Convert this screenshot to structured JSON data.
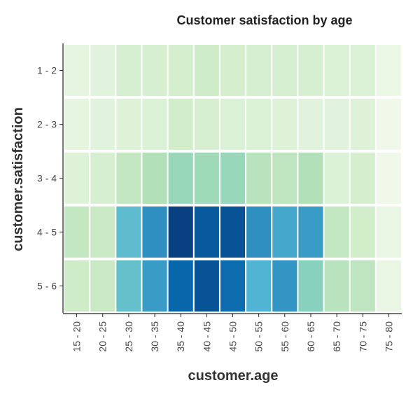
{
  "chart_data": {
    "type": "heatmap",
    "title": "Customer satisfaction by age",
    "xlabel": "customer.age",
    "ylabel": "customer.satisfaction",
    "x_categories": [
      "15 - 20",
      "20 - 25",
      "25 - 30",
      "30 - 35",
      "35 - 40",
      "40 - 45",
      "45 - 50",
      "50 - 55",
      "55 - 60",
      "60 - 65",
      "65 - 70",
      "70 - 75",
      "75 - 80"
    ],
    "y_categories": [
      "1 - 2",
      "2 - 3",
      "3 - 4",
      "4 - 5",
      "5 - 6"
    ],
    "values": [
      [
        0.1,
        0.12,
        0.18,
        0.18,
        0.2,
        0.24,
        0.2,
        0.18,
        0.18,
        0.18,
        0.16,
        0.16,
        0.06
      ],
      [
        0.1,
        0.12,
        0.14,
        0.16,
        0.22,
        0.18,
        0.16,
        0.16,
        0.14,
        0.12,
        0.12,
        0.14,
        0.04
      ],
      [
        0.14,
        0.18,
        0.28,
        0.34,
        0.42,
        0.4,
        0.42,
        0.32,
        0.3,
        0.34,
        0.16,
        0.2,
        0.04
      ],
      [
        0.28,
        0.26,
        0.58,
        0.74,
        1.0,
        0.92,
        0.94,
        0.74,
        0.66,
        0.7,
        0.28,
        0.22,
        0.08
      ],
      [
        0.24,
        0.26,
        0.56,
        0.7,
        0.88,
        0.94,
        0.86,
        0.62,
        0.72,
        0.46,
        0.32,
        0.3,
        0.08
      ]
    ],
    "value_scale": [
      0,
      1
    ],
    "colormap": [
      "#f7fcf0",
      "#e0f3db",
      "#ccebc5",
      "#a8ddb5",
      "#7bccc4",
      "#4eb3d3",
      "#2b8cbe",
      "#0868ac",
      "#084081"
    ],
    "grid": false,
    "legend": "none"
  }
}
